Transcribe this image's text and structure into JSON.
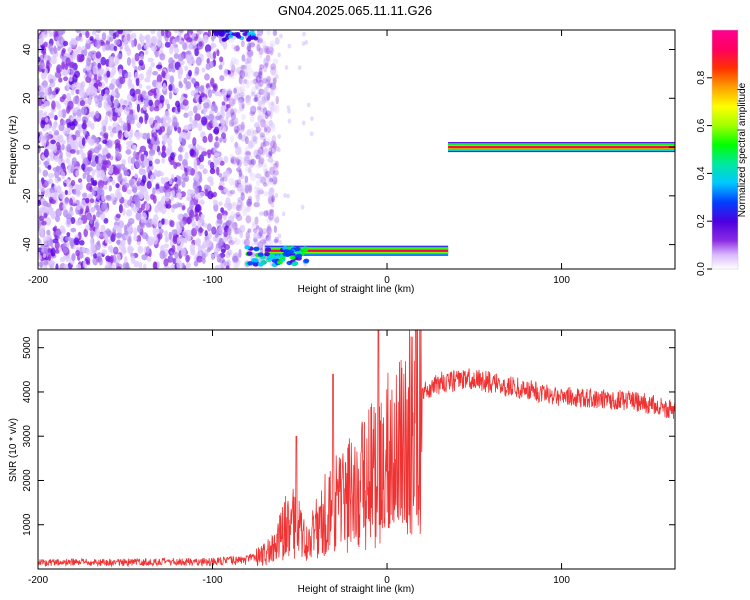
{
  "title": "GN04.2025.065.11.11.G26",
  "chart_data": [
    {
      "type": "heatmap",
      "xlabel": "Height of straight line (km)",
      "ylabel": "Frequency (Hz)",
      "xlim": [
        -200,
        165
      ],
      "ylim": [
        -50,
        48
      ],
      "x_ticks": [
        -200,
        -100,
        0,
        100
      ],
      "y_ticks": [
        -40,
        -20,
        0,
        20,
        40
      ],
      "colorbar": {
        "label": "Normalized spectral amplitude",
        "range": [
          0,
          1
        ],
        "ticks": [
          0.0,
          0.2,
          0.4,
          0.6,
          0.8
        ],
        "colors": [
          "#ffffff",
          "#d9b8ff",
          "#8a2be2",
          "#4b00e0",
          "#0040ff",
          "#00c8ff",
          "#00e8a0",
          "#00ff00",
          "#a0ff00",
          "#ffff00",
          "#ffa000",
          "#ff3000",
          "#ff0060",
          "#ff0090"
        ]
      },
      "features": [
        {
          "kind": "noise",
          "x_range": [
            -200,
            -73
          ],
          "y_range": [
            -50,
            48
          ],
          "level": 0.1
        },
        {
          "kind": "tone",
          "x_range": [
            -70,
            35
          ],
          "y": -42.5,
          "level": 0.9
        },
        {
          "kind": "tone",
          "x_range": [
            35,
            165
          ],
          "y": 0,
          "level": 0.95
        }
      ]
    },
    {
      "type": "line",
      "xlabel": "Height of straight line (km)",
      "ylabel": "SNR (10 * v/v)",
      "xlim": [
        -200,
        165
      ],
      "ylim": [
        0,
        5400
      ],
      "x_ticks": [
        -200,
        -100,
        0,
        100
      ],
      "y_ticks": [
        1000,
        2000,
        3000,
        4000,
        5000
      ],
      "line_color": "#f03232",
      "envelope": [
        [
          -200,
          150
        ],
        [
          -150,
          150
        ],
        [
          -100,
          170
        ],
        [
          -80,
          200
        ],
        [
          -70,
          350
        ],
        [
          -62,
          700
        ],
        [
          -55,
          1200
        ],
        [
          -50,
          900
        ],
        [
          -45,
          600
        ],
        [
          -40,
          1000
        ],
        [
          -35,
          1300
        ],
        [
          -30,
          1500
        ],
        [
          -25,
          1600
        ],
        [
          -20,
          1800
        ],
        [
          -15,
          2000
        ],
        [
          -10,
          2200
        ],
        [
          -5,
          2400
        ],
        [
          0,
          2600
        ],
        [
          5,
          2900
        ],
        [
          10,
          3300
        ],
        [
          15,
          3700
        ],
        [
          20,
          4000
        ],
        [
          30,
          4200
        ],
        [
          40,
          4250
        ],
        [
          50,
          4300
        ],
        [
          60,
          4200
        ],
        [
          80,
          4050
        ],
        [
          100,
          3900
        ],
        [
          120,
          3850
        ],
        [
          140,
          3800
        ],
        [
          155,
          3700
        ],
        [
          165,
          3550
        ]
      ],
      "spikes": [
        [
          -52,
          3000
        ],
        [
          -31,
          4400
        ],
        [
          -5,
          5400
        ]
      ]
    }
  ]
}
